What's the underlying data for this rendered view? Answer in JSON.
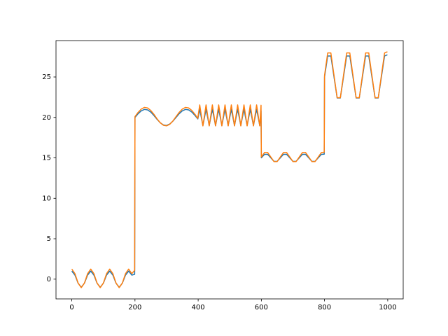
{
  "chart_data": {
    "type": "line",
    "x": [
      0,
      10,
      20,
      30,
      40,
      50,
      60,
      70,
      80,
      90,
      100,
      110,
      120,
      130,
      140,
      150,
      160,
      170,
      180,
      190,
      199,
      200,
      210,
      220,
      230,
      240,
      250,
      260,
      270,
      280,
      290,
      300,
      310,
      320,
      330,
      340,
      350,
      360,
      370,
      380,
      390,
      399,
      400,
      405,
      410,
      415,
      420,
      425,
      430,
      435,
      440,
      445,
      450,
      455,
      460,
      465,
      470,
      475,
      480,
      485,
      490,
      495,
      500,
      505,
      510,
      515,
      520,
      525,
      530,
      535,
      540,
      545,
      550,
      555,
      560,
      565,
      570,
      575,
      580,
      585,
      590,
      595,
      599,
      600,
      610,
      620,
      630,
      640,
      650,
      660,
      670,
      680,
      690,
      700,
      710,
      720,
      730,
      740,
      750,
      760,
      770,
      780,
      790,
      799,
      800,
      810,
      820,
      830,
      840,
      850,
      860,
      870,
      880,
      890,
      900,
      910,
      920,
      930,
      940,
      950,
      960,
      970,
      980,
      990,
      999
    ],
    "series": [
      {
        "color": "#1f77b4",
        "values": [
          1,
          0.5,
          -0.5,
          -1,
          -0.5,
          0.5,
          1,
          0.5,
          -0.5,
          -1,
          -0.5,
          0.5,
          1,
          0.5,
          -0.5,
          -1,
          -0.5,
          0.5,
          1,
          0.5,
          0.6,
          20,
          20.46,
          20.82,
          20.99,
          20.93,
          20.66,
          20.24,
          19.76,
          19.34,
          19.07,
          19.01,
          19.18,
          19.54,
          20,
          20.46,
          20.82,
          20.99,
          20.93,
          20.66,
          20.24,
          19.81,
          20,
          21,
          20,
          19,
          20,
          21,
          20,
          19,
          20,
          21,
          20,
          19,
          20,
          21,
          20,
          19,
          20,
          21,
          20,
          19,
          20,
          21,
          20,
          19,
          20,
          21,
          20,
          19,
          20,
          21,
          20,
          19,
          20,
          21,
          20,
          19,
          20,
          21,
          20,
          19,
          20.8,
          15,
          15.43,
          15.43,
          15,
          14.57,
          14.57,
          15,
          15.43,
          15.43,
          15,
          14.57,
          14.57,
          15,
          15.43,
          15.43,
          15,
          14.57,
          14.57,
          15,
          15.43,
          15.46,
          25,
          27.6,
          27.6,
          25,
          22.4,
          22.4,
          25,
          27.6,
          27.6,
          25,
          22.4,
          22.4,
          25,
          27.6,
          27.6,
          25,
          22.4,
          22.4,
          25,
          27.6,
          27.74
        ]
      },
      {
        "color": "#ff7f0e",
        "values": [
          1.25,
          0.68,
          -0.48,
          -1.05,
          -0.48,
          0.68,
          1.25,
          0.68,
          -0.48,
          -1.05,
          -0.48,
          0.68,
          1.25,
          0.68,
          -0.48,
          -1.05,
          -0.48,
          0.68,
          1.25,
          0.68,
          1.1,
          20.1,
          20.63,
          21.04,
          21.24,
          21.17,
          20.86,
          20.38,
          19.82,
          19.34,
          19.03,
          18.96,
          19.15,
          19.56,
          20.1,
          20.63,
          21.04,
          21.24,
          21.17,
          20.86,
          20.38,
          19.88,
          20.25,
          21.55,
          20.25,
          18.95,
          20.25,
          21.55,
          20.25,
          18.95,
          20.25,
          21.55,
          20.25,
          18.95,
          20.25,
          21.55,
          20.25,
          18.95,
          20.25,
          21.55,
          20.25,
          18.95,
          20.25,
          21.55,
          20.25,
          18.95,
          20.25,
          21.55,
          20.25,
          18.95,
          20.25,
          21.55,
          20.25,
          18.95,
          20.25,
          21.55,
          20.25,
          18.95,
          20.25,
          21.55,
          20.25,
          18.95,
          21.5,
          15.1,
          15.66,
          15.66,
          15.1,
          14.54,
          14.54,
          15.1,
          15.66,
          15.66,
          15.1,
          14.54,
          14.54,
          15.1,
          15.66,
          15.66,
          15.1,
          14.54,
          14.54,
          15.1,
          15.66,
          15.69,
          25.2,
          27.97,
          27.97,
          25.2,
          22.43,
          22.43,
          25.2,
          27.97,
          27.97,
          25.2,
          22.43,
          22.43,
          25.2,
          27.97,
          27.97,
          25.2,
          22.43,
          22.43,
          25.2,
          27.97,
          28.12
        ]
      }
    ],
    "xlim": [
      -50,
      1049
    ],
    "xticks": [
      0,
      200,
      400,
      600,
      800,
      1000
    ],
    "ylim": [
      -2.44,
      29.5
    ],
    "yticks": [
      0,
      5,
      10,
      15,
      20,
      25
    ]
  }
}
